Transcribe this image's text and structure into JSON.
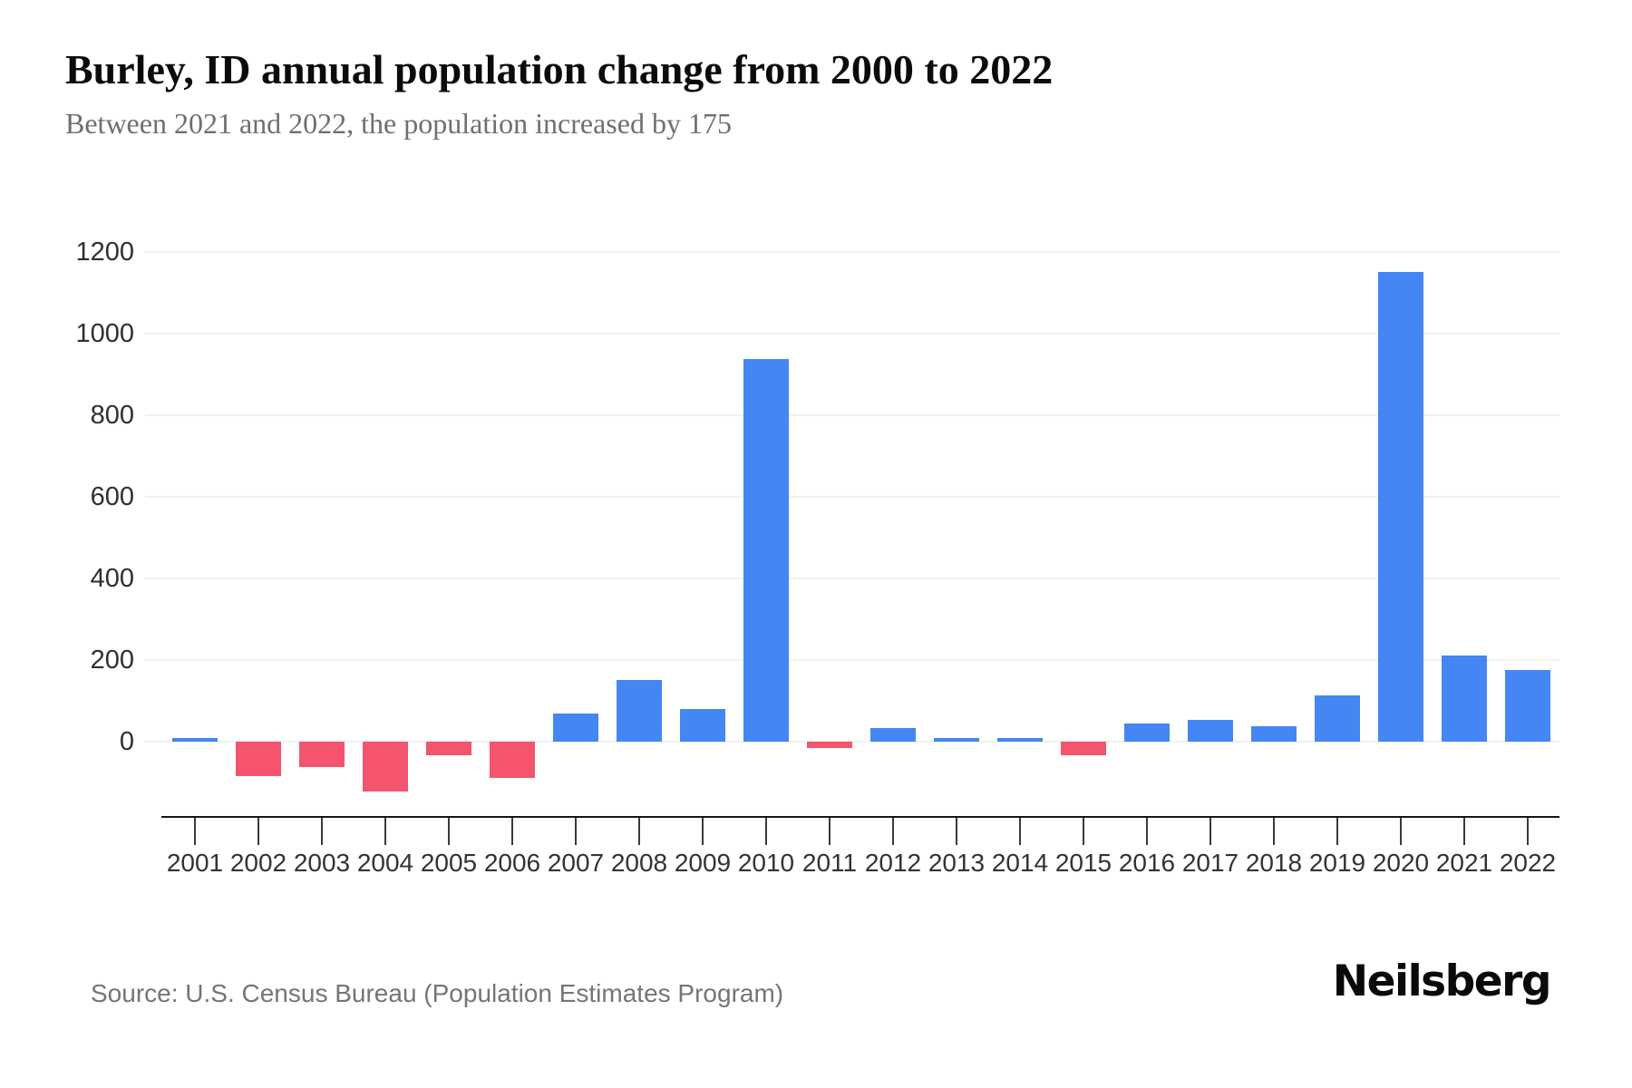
{
  "header": {
    "title": "Burley, ID annual population change from 2000 to 2022",
    "subtitle": "Between 2021 and 2022, the population increased by 175"
  },
  "footer": {
    "source": "Source: U.S. Census Bureau (Population Estimates Program)",
    "brand": "Neilsberg"
  },
  "chart_data": {
    "type": "bar",
    "title": "Burley, ID annual population change from 2000 to 2022",
    "xlabel": "",
    "ylabel": "",
    "categories": [
      "2001",
      "2002",
      "2003",
      "2004",
      "2005",
      "2006",
      "2007",
      "2008",
      "2009",
      "2010",
      "2011",
      "2012",
      "2013",
      "2014",
      "2015",
      "2016",
      "2017",
      "2018",
      "2019",
      "2020",
      "2021",
      "2022"
    ],
    "values": [
      8,
      -84,
      -62,
      -122,
      -33,
      -89,
      68,
      152,
      80,
      938,
      -15,
      34,
      8,
      8,
      -34,
      44,
      54,
      38,
      114,
      1152,
      212,
      175
    ],
    "y_ticks": [
      0,
      200,
      400,
      600,
      800,
      1000,
      1200
    ],
    "ylim": [
      -180,
      1280
    ],
    "grid": true,
    "legend": false,
    "colors": {
      "positive": "#4486f2",
      "negative": "#f4546e",
      "gridline": "#f1f1f3",
      "axis": "#161616",
      "tick_label": "#333333"
    }
  }
}
